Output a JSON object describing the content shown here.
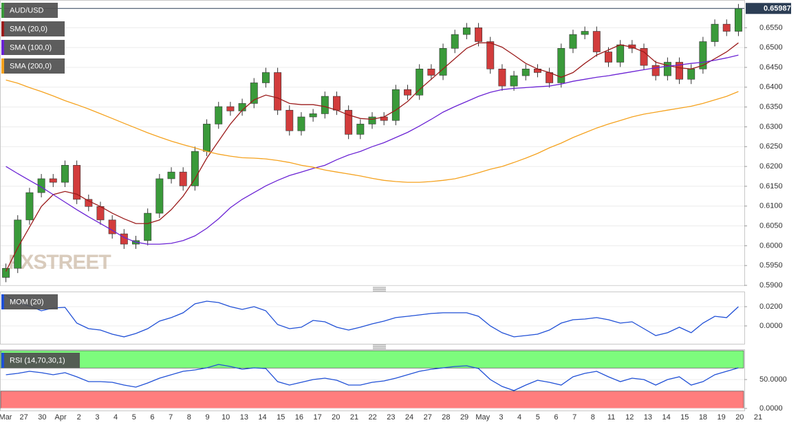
{
  "chart_data": [
    {
      "type": "candlestick",
      "title": "AUD/USD",
      "open": [
        0.592,
        0.5943,
        0.6065,
        0.6134,
        0.6169,
        0.616,
        0.6203,
        0.6117,
        0.6099,
        0.6065,
        0.603,
        0.6004,
        0.6013,
        0.6082,
        0.6169,
        0.6186,
        0.6151,
        0.6238,
        0.6307,
        0.6351,
        0.634,
        0.6359,
        0.6411,
        0.6437,
        0.6342,
        0.629,
        0.6325,
        0.6333,
        0.6377,
        0.6342,
        0.6281,
        0.6307,
        0.6325,
        0.6316,
        0.6394,
        0.638,
        0.6446,
        0.643,
        0.6498,
        0.6533,
        0.655,
        0.6515,
        0.6446,
        0.6403,
        0.6429,
        0.6446,
        0.6437,
        0.6411,
        0.6498,
        0.6533,
        0.6541,
        0.6489,
        0.6463,
        0.6507,
        0.6498,
        0.6455,
        0.6429,
        0.6463,
        0.642,
        0.6446,
        0.6515,
        0.6559,
        0.6541
      ],
      "high": [
        0.5955,
        0.6077,
        0.6146,
        0.6181,
        0.6181,
        0.6215,
        0.6215,
        0.6129,
        0.6111,
        0.6077,
        0.6042,
        0.6025,
        0.6094,
        0.6181,
        0.6198,
        0.6198,
        0.625,
        0.6319,
        0.6363,
        0.6363,
        0.6371,
        0.6423,
        0.6449,
        0.6449,
        0.6354,
        0.6337,
        0.6345,
        0.6389,
        0.6389,
        0.6354,
        0.6319,
        0.6337,
        0.6337,
        0.6406,
        0.6406,
        0.6458,
        0.6458,
        0.651,
        0.6545,
        0.6562,
        0.6562,
        0.6527,
        0.6458,
        0.6441,
        0.6458,
        0.6458,
        0.6449,
        0.651,
        0.6545,
        0.6553,
        0.6553,
        0.6501,
        0.6519,
        0.6519,
        0.651,
        0.6467,
        0.6475,
        0.6475,
        0.6458,
        0.6527,
        0.6571,
        0.6571,
        0.661
      ],
      "low": [
        0.5908,
        0.5931,
        0.6053,
        0.6122,
        0.6148,
        0.6148,
        0.6105,
        0.6087,
        0.6053,
        0.6018,
        0.5992,
        0.5992,
        0.6001,
        0.607,
        0.6157,
        0.6139,
        0.6139,
        0.6226,
        0.6295,
        0.6328,
        0.6328,
        0.6347,
        0.6399,
        0.633,
        0.6278,
        0.6278,
        0.6313,
        0.6321,
        0.633,
        0.6269,
        0.6269,
        0.6295,
        0.6304,
        0.6304,
        0.6368,
        0.6368,
        0.6418,
        0.6418,
        0.6486,
        0.6521,
        0.6503,
        0.6434,
        0.6391,
        0.6391,
        0.6417,
        0.6425,
        0.6399,
        0.6399,
        0.6486,
        0.6521,
        0.6477,
        0.6451,
        0.6451,
        0.6486,
        0.6443,
        0.6417,
        0.6417,
        0.6408,
        0.6408,
        0.6434,
        0.6503,
        0.6529,
        0.6529
      ],
      "close": [
        0.5943,
        0.6065,
        0.6134,
        0.6169,
        0.616,
        0.6203,
        0.6117,
        0.6099,
        0.6065,
        0.603,
        0.6004,
        0.6013,
        0.6082,
        0.6169,
        0.6186,
        0.6151,
        0.6238,
        0.6307,
        0.6351,
        0.634,
        0.6359,
        0.6411,
        0.6437,
        0.6342,
        0.629,
        0.6325,
        0.6333,
        0.6377,
        0.6342,
        0.6281,
        0.6307,
        0.6325,
        0.6316,
        0.6394,
        0.638,
        0.6446,
        0.643,
        0.6498,
        0.6533,
        0.655,
        0.6515,
        0.6446,
        0.6403,
        0.6429,
        0.6446,
        0.6437,
        0.6411,
        0.6498,
        0.6533,
        0.6541,
        0.6489,
        0.6463,
        0.6507,
        0.6498,
        0.6455,
        0.6429,
        0.6463,
        0.642,
        0.6446,
        0.6515,
        0.6559,
        0.6541,
        0.65987
      ],
      "colors": {
        "up": "#3a9a3a",
        "down": "#d23c3c"
      },
      "series": [
        {
          "name": "SMA (20,0)",
          "color": "#9b1b1b",
          "values": [
            0.5935,
            0.5995,
            0.6047,
            0.6099,
            0.6129,
            0.6137,
            0.613,
            0.6113,
            0.6099,
            0.6082,
            0.6068,
            0.6056,
            0.6056,
            0.6065,
            0.6091,
            0.6125,
            0.6169,
            0.6221,
            0.6264,
            0.6307,
            0.6342,
            0.6368,
            0.638,
            0.6373,
            0.6359,
            0.6356,
            0.6356,
            0.6351,
            0.6342,
            0.633,
            0.6321,
            0.6319,
            0.6325,
            0.6342,
            0.6364,
            0.6394,
            0.642,
            0.6446,
            0.6472,
            0.6498,
            0.6512,
            0.6512,
            0.6501,
            0.6481,
            0.646,
            0.6446,
            0.6437,
            0.6425,
            0.6437,
            0.646,
            0.6481,
            0.6494,
            0.6507,
            0.6501,
            0.6489,
            0.6463,
            0.6455,
            0.6449,
            0.6446,
            0.6455,
            0.6472,
            0.6489,
            0.6512
          ]
        },
        {
          "name": "SMA (100,0)",
          "color": "#6a22d4",
          "values": [
            0.62,
            0.6182,
            0.6165,
            0.6148,
            0.6129,
            0.611,
            0.6091,
            0.6073,
            0.6056,
            0.6039,
            0.6021,
            0.6009,
            0.6004,
            0.6004,
            0.6006,
            0.6013,
            0.6025,
            0.6044,
            0.6068,
            0.6096,
            0.6117,
            0.6134,
            0.6151,
            0.6165,
            0.6177,
            0.6186,
            0.6195,
            0.6203,
            0.6217,
            0.6229,
            0.6238,
            0.625,
            0.626,
            0.6273,
            0.6286,
            0.6302,
            0.6319,
            0.6337,
            0.6351,
            0.6364,
            0.6377,
            0.6387,
            0.6394,
            0.6397,
            0.6399,
            0.6401,
            0.6403,
            0.6408,
            0.6415,
            0.642,
            0.6425,
            0.6429,
            0.6434,
            0.6439,
            0.6444,
            0.6449,
            0.6453,
            0.6456,
            0.646,
            0.6463,
            0.6468,
            0.6474,
            0.6481
          ]
        },
        {
          "name": "SMA (200,0)",
          "color": "#f5a21e",
          "values": [
            0.6418,
            0.641,
            0.6399,
            0.6389,
            0.6378,
            0.6366,
            0.6356,
            0.6345,
            0.6333,
            0.6321,
            0.6309,
            0.6297,
            0.6285,
            0.6274,
            0.6264,
            0.6255,
            0.6247,
            0.6238,
            0.6231,
            0.6226,
            0.6222,
            0.6221,
            0.6219,
            0.6215,
            0.621,
            0.6203,
            0.6198,
            0.6191,
            0.6186,
            0.6181,
            0.6176,
            0.617,
            0.6165,
            0.6162,
            0.616,
            0.616,
            0.6162,
            0.6165,
            0.6169,
            0.6176,
            0.6184,
            0.6193,
            0.62,
            0.621,
            0.6221,
            0.6233,
            0.6247,
            0.6259,
            0.6273,
            0.6285,
            0.6297,
            0.6307,
            0.6316,
            0.6325,
            0.6332,
            0.6337,
            0.6342,
            0.6347,
            0.6352,
            0.6359,
            0.6368,
            0.6377,
            0.6389
          ]
        }
      ],
      "ylim": [
        0.59,
        0.662
      ],
      "yticks": [
        {
          "value": 0.59,
          "label": "0.5900"
        },
        {
          "value": 0.595,
          "label": "0.5950"
        },
        {
          "value": 0.6,
          "label": "0.6000"
        },
        {
          "value": 0.605,
          "label": "0.6050"
        },
        {
          "value": 0.61,
          "label": "0.6100"
        },
        {
          "value": 0.615,
          "label": "0.6150"
        },
        {
          "value": 0.62,
          "label": "0.6200"
        },
        {
          "value": 0.625,
          "label": "0.6250"
        },
        {
          "value": 0.63,
          "label": "0.6300"
        },
        {
          "value": 0.635,
          "label": "0.6350"
        },
        {
          "value": 0.64,
          "label": "0.6400"
        },
        {
          "value": 0.645,
          "label": "0.6450"
        },
        {
          "value": 0.65,
          "label": "0.6500"
        },
        {
          "value": 0.655,
          "label": "0.6550"
        }
      ],
      "current_price": {
        "value": 0.65987,
        "label": "0.659870"
      },
      "watermark": "FXSTREET",
      "grid": true
    },
    {
      "type": "line",
      "series": [
        {
          "name": "MOM (20)",
          "color": "#1f4fd6",
          "values": [
            0.0314,
            0.0243,
            0.0207,
            0.0157,
            0.0186,
            0.0193,
            0.0029,
            -0.0029,
            -0.0043,
            -0.0086,
            -0.0114,
            -0.0079,
            -0.0029,
            0.005,
            0.0086,
            0.0136,
            0.0229,
            0.0257,
            0.0243,
            0.02,
            0.0171,
            0.02,
            0.0157,
            0.0014,
            -0.0029,
            -0.0014,
            0.0057,
            0.0043,
            -0.0014,
            -0.0043,
            -0.0014,
            0.0021,
            0.005,
            0.0086,
            0.01,
            0.0114,
            0.0129,
            0.0136,
            0.0136,
            0.0136,
            0.01,
            0,
            -0.0071,
            -0.0114,
            -0.01,
            -0.0086,
            -0.0043,
            0.0029,
            0.0064,
            0.0071,
            0.0086,
            0.0064,
            0.0029,
            0.0043,
            -0.0029,
            -0.01,
            -0.0071,
            -0.0014,
            -0.0071,
            0.0029,
            0.01,
            0.0086,
            0.02
          ]
        }
      ],
      "ylim": [
        -0.0186,
        0.035
      ],
      "yticks": [
        {
          "value": 0,
          "label": "0.0000"
        },
        {
          "value": 0.02,
          "label": "0.0200"
        }
      ],
      "grid": true
    },
    {
      "type": "line",
      "series": [
        {
          "name": "RSI (14,70,30,1)",
          "color": "#1f4fd6",
          "values": [
            58.3,
            60.7,
            64.3,
            61.9,
            58.3,
            61.9,
            54.8,
            46.4,
            46.4,
            45.2,
            40.5,
            36.9,
            44.0,
            52.4,
            58.3,
            64.3,
            66.7,
            70.2,
            76.2,
            72.6,
            67.9,
            70.2,
            69.0,
            46.4,
            40.5,
            45.2,
            50.0,
            52.4,
            48.8,
            40.5,
            40.5,
            45.2,
            47.6,
            52.4,
            58.3,
            64.3,
            67.9,
            70.2,
            72.6,
            73.8,
            69.0,
            50.0,
            38.1,
            31.0,
            40.5,
            48.8,
            45.2,
            40.5,
            54.8,
            60.7,
            64.3,
            54.8,
            46.4,
            52.4,
            50.0,
            40.5,
            50.0,
            54.8,
            40.5,
            46.4,
            58.3,
            64.3,
            70.2
          ]
        }
      ],
      "bands": [
        {
          "from": 70,
          "to": 100,
          "color": "#7dfc7d"
        },
        {
          "from": 0,
          "to": 30,
          "color": "#ff7d7d"
        }
      ],
      "ylim": [
        0,
        100
      ],
      "yticks": [
        {
          "value": 0,
          "label": "0.0000"
        },
        {
          "value": 50,
          "label": "50.0000"
        }
      ],
      "grid": true,
      "x_labels": [
        "Mar",
        "27",
        "30",
        "Apr",
        "2",
        "3",
        "4",
        "5",
        "6",
        "7",
        "8",
        "9",
        "10",
        "13",
        "14",
        "15",
        "16",
        "17",
        "20",
        "21",
        "22",
        "23",
        "24",
        "27",
        "28",
        "29",
        "May",
        "3",
        "4",
        "5",
        "6",
        "7",
        "8",
        "11",
        "12",
        "13",
        "14",
        "15",
        "18",
        "19",
        "20",
        "21"
      ]
    }
  ]
}
